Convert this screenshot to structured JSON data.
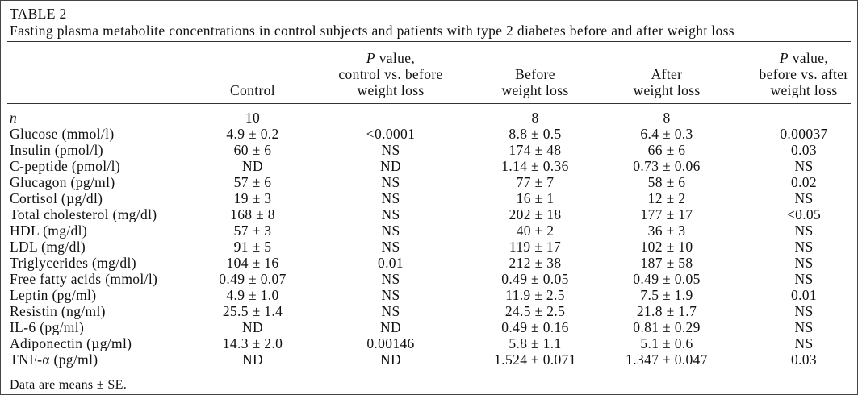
{
  "title": "TABLE 2",
  "caption": "Fasting plasma metabolite concentrations in control subjects and patients with type 2 diabetes before and after weight loss",
  "table": {
    "header": [
      {
        "lines": [
          "Control"
        ]
      },
      {
        "italic": "P",
        "lines": [
          " value,",
          "control vs. before",
          "weight loss"
        ]
      },
      {
        "lines": [
          "Before",
          "weight loss"
        ]
      },
      {
        "lines": [
          "After",
          "weight loss"
        ]
      },
      {
        "italic": "P",
        "lines": [
          " value,",
          "before vs. after",
          "weight loss"
        ]
      }
    ],
    "rows": [
      [
        "n",
        "10",
        "",
        "8",
        "8",
        ""
      ],
      [
        "Glucose (mmol/l)",
        "4.9 ± 0.2",
        "<0.0001",
        "8.8 ± 0.5",
        "6.4 ± 0.3",
        "0.00037"
      ],
      [
        "Insulin (pmol/l)",
        "60 ± 6",
        "NS",
        "174 ± 48",
        "66 ± 6",
        "0.03"
      ],
      [
        "C-peptide (pmol/l)",
        "ND",
        "ND",
        "1.14 ± 0.36",
        "0.73 ± 0.06",
        "NS"
      ],
      [
        "Glucagon (pg/ml)",
        "57 ± 6",
        "NS",
        "77 ± 7",
        "58 ± 6",
        "0.02"
      ],
      [
        "Cortisol (µg/dl)",
        "19 ± 3",
        "NS",
        "16 ± 1",
        "12 ± 2",
        "NS"
      ],
      [
        "Total cholesterol (mg/dl)",
        "168 ± 8",
        "NS",
        "202 ± 18",
        "177 ± 17",
        "<0.05"
      ],
      [
        "HDL (mg/dl)",
        "57 ± 3",
        "NS",
        "40 ± 2",
        "36 ± 3",
        "NS"
      ],
      [
        "LDL (mg/dl)",
        "91 ± 5",
        "NS",
        "119 ± 17",
        "102 ± 10",
        "NS"
      ],
      [
        "Triglycerides (mg/dl)",
        "104 ± 16",
        "0.01",
        "212 ± 38",
        "187 ± 58",
        "NS"
      ],
      [
        "Free fatty acids (mmol/l)",
        "0.49 ± 0.07",
        "NS",
        "0.49 ± 0.05",
        "0.49 ± 0.05",
        "NS"
      ],
      [
        "Leptin (pg/ml)",
        "4.9 ± 1.0",
        "NS",
        "11.9 ± 2.5",
        "7.5 ± 1.9",
        "0.01"
      ],
      [
        "Resistin (ng/ml)",
        "25.5 ± 1.4",
        "NS",
        "24.5 ± 2.5",
        "21.8 ± 1.7",
        "NS"
      ],
      [
        "IL-6 (pg/ml)",
        "ND",
        "ND",
        "0.49 ± 0.16",
        "0.81 ± 0.29",
        "NS"
      ],
      [
        "Adiponectin (µg/ml)",
        "14.3 ± 2.0",
        "0.00146",
        "5.8 ± 1.1",
        "5.1 ± 0.6",
        "NS"
      ],
      [
        "TNF-α (pg/ml)",
        "ND",
        "ND",
        "1.524 ± 0.071",
        "1.347 ± 0.047",
        "0.03"
      ]
    ]
  },
  "footnote": "Data are means ± SE."
}
